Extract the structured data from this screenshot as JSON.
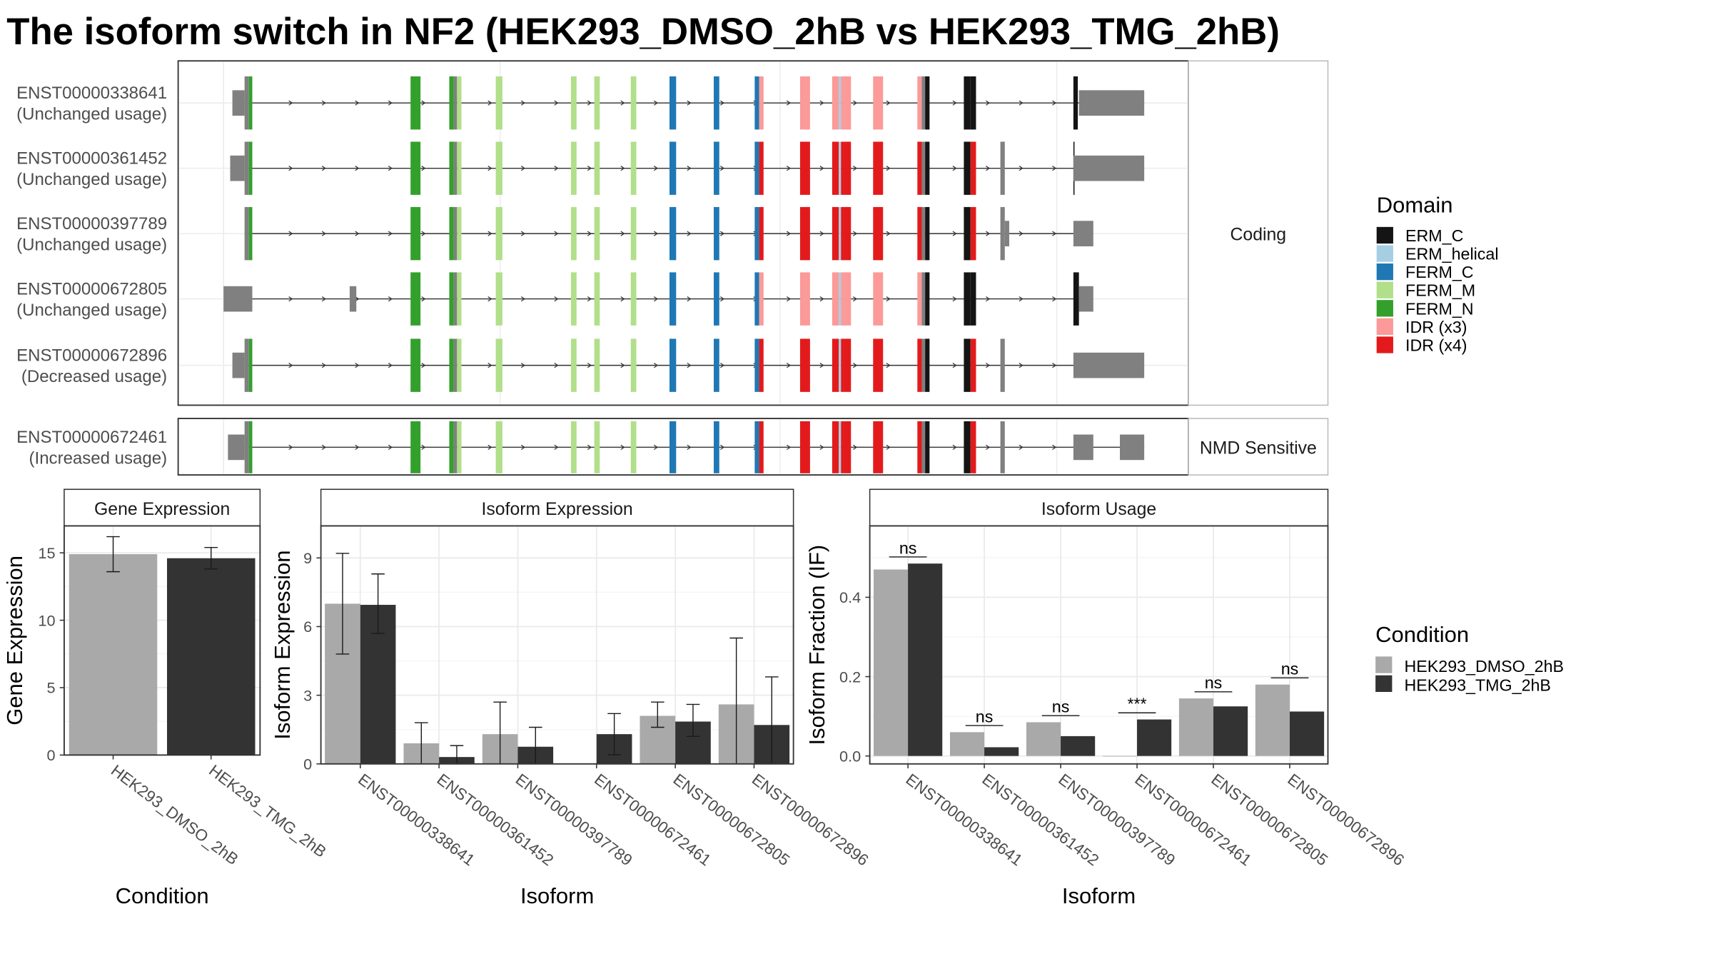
{
  "title": "The isoform switch in NF2 (HEK293_DMSO_2hB vs HEK293_TMG_2hB)",
  "domain_legend": {
    "title": "Domain",
    "items": [
      {
        "label": "ERM_C",
        "color": "#141414"
      },
      {
        "label": "ERM_helical",
        "color": "#a6cee3"
      },
      {
        "label": "FERM_C",
        "color": "#1f78b4"
      },
      {
        "label": "FERM_M",
        "color": "#b2df8a"
      },
      {
        "label": "FERM_N",
        "color": "#33a02c"
      },
      {
        "label": "IDR (x3)",
        "color": "#fb9a99"
      },
      {
        "label": "IDR (x4)",
        "color": "#e31a1c"
      }
    ]
  },
  "condition_legend": {
    "title": "Condition",
    "items": [
      {
        "label": "HEK293_DMSO_2hB",
        "color": "#a9a9a9"
      },
      {
        "label": "HEK293_TMG_2hB",
        "color": "#333333"
      }
    ]
  },
  "transcript_panel": {
    "coding_strip": "Coding",
    "nmd_strip": "NMD Sensitive",
    "transcripts": [
      {
        "id": "ENST00000338641",
        "usage": "(Unchanged usage)",
        "group": "Coding"
      },
      {
        "id": "ENST00000361452",
        "usage": "(Unchanged usage)",
        "group": "Coding"
      },
      {
        "id": "ENST00000397789",
        "usage": "(Unchanged usage)",
        "group": "Coding"
      },
      {
        "id": "ENST00000672805",
        "usage": "(Unchanged usage)",
        "group": "Coding"
      },
      {
        "id": "ENST00000672896",
        "usage": "(Decreased usage)",
        "group": "Coding"
      },
      {
        "id": "ENST00000672461",
        "usage": "(Increased usage)",
        "group": "NMD Sensitive"
      }
    ]
  },
  "chart_data": [
    {
      "type": "bar",
      "title": "Gene Expression",
      "xlabel": "Condition",
      "ylabel": "Gene Expression",
      "ylim": [
        0,
        17
      ],
      "yticks": [
        0,
        5,
        10,
        15
      ],
      "categories": [
        "HEK293_DMSO_2hB",
        "HEK293_TMG_2hB"
      ],
      "values": [
        14.9,
        14.6
      ],
      "error": [
        [
          13.6,
          16.2
        ],
        [
          13.8,
          15.4
        ]
      ]
    },
    {
      "type": "bar",
      "title": "Isoform Expression",
      "xlabel": "Isoform",
      "ylabel": "Isoform Expression",
      "ylim": [
        0,
        10.4
      ],
      "yticks": [
        0,
        3,
        6,
        9
      ],
      "categories": [
        "ENST00000338641",
        "ENST00000361452",
        "ENST00000397789",
        "ENST00000672461",
        "ENST00000672805",
        "ENST00000672896"
      ],
      "series": [
        {
          "name": "HEK293_DMSO_2hB",
          "values": [
            7.0,
            0.9,
            1.3,
            0.0,
            2.1,
            2.6
          ],
          "error": [
            [
              4.8,
              9.2
            ],
            [
              0.0,
              1.8
            ],
            [
              0.0,
              2.7
            ],
            [
              0.0,
              0.0
            ],
            [
              1.6,
              2.7
            ],
            [
              0.0,
              5.5
            ]
          ]
        },
        {
          "name": "HEK293_TMG_2hB",
          "values": [
            6.95,
            0.3,
            0.75,
            1.3,
            1.85,
            1.7
          ],
          "error": [
            [
              5.7,
              8.3
            ],
            [
              0.0,
              0.8
            ],
            [
              0.0,
              1.6
            ],
            [
              0.4,
              2.2
            ],
            [
              1.2,
              2.6
            ],
            [
              0.0,
              3.8
            ]
          ]
        }
      ]
    },
    {
      "type": "bar",
      "title": "Isoform Usage",
      "xlabel": "Isoform",
      "ylabel": "Isoform Fraction (IF)",
      "ylim": [
        -0.02,
        0.58
      ],
      "yticks": [
        0.0,
        0.2,
        0.4
      ],
      "categories": [
        "ENST00000338641",
        "ENST00000361452",
        "ENST00000397789",
        "ENST00000672461",
        "ENST00000672805",
        "ENST00000672896"
      ],
      "series": [
        {
          "name": "HEK293_DMSO_2hB",
          "values": [
            0.47,
            0.06,
            0.085,
            0.0,
            0.145,
            0.18
          ]
        },
        {
          "name": "HEK293_TMG_2hB",
          "values": [
            0.485,
            0.022,
            0.05,
            0.092,
            0.125,
            0.112
          ]
        }
      ],
      "significance": [
        "ns",
        "ns",
        "ns",
        "***",
        "ns",
        "ns"
      ]
    }
  ]
}
